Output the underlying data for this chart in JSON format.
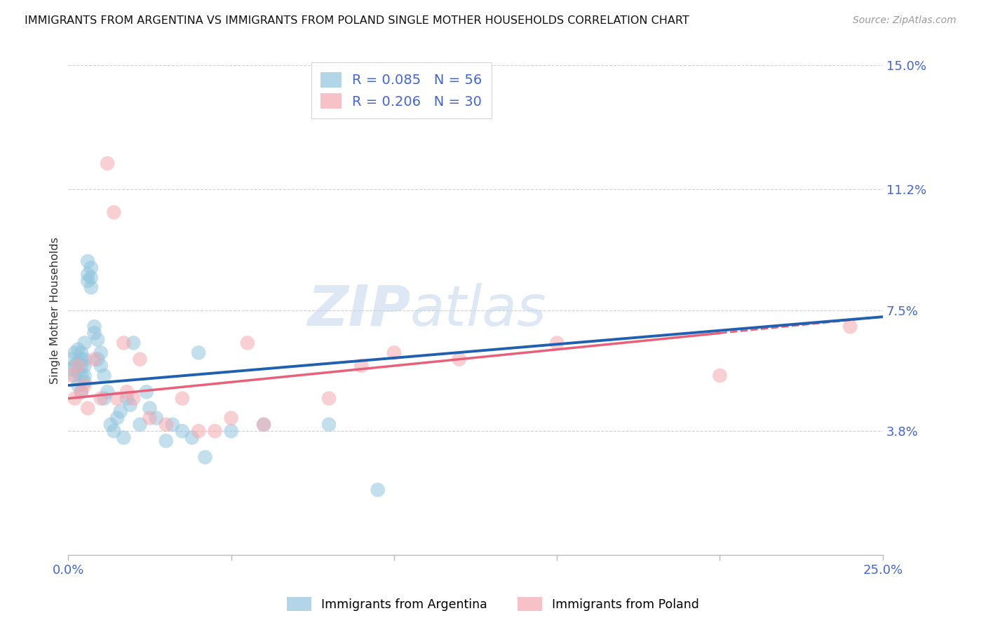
{
  "title": "IMMIGRANTS FROM ARGENTINA VS IMMIGRANTS FROM POLAND SINGLE MOTHER HOUSEHOLDS CORRELATION CHART",
  "source": "Source: ZipAtlas.com",
  "ylabel": "Single Mother Households",
  "xlim": [
    0.0,
    0.25
  ],
  "ylim": [
    0.0,
    0.15
  ],
  "ytick_labels_right": [
    "15.0%",
    "11.2%",
    "7.5%",
    "3.8%"
  ],
  "ytick_vals_right": [
    0.15,
    0.112,
    0.075,
    0.038
  ],
  "watermark_zip": "ZIP",
  "watermark_atlas": "atlas",
  "argentina_R": 0.085,
  "argentina_N": 56,
  "poland_R": 0.206,
  "poland_N": 30,
  "argentina_color": "#92c5de",
  "poland_color": "#f4a8b0",
  "argentina_line_color": "#2060b0",
  "poland_line_color": "#e8607a",
  "background_color": "#ffffff",
  "grid_color": "#d0d0d0",
  "argentina_x": [
    0.001,
    0.001,
    0.002,
    0.002,
    0.002,
    0.003,
    0.003,
    0.003,
    0.003,
    0.004,
    0.004,
    0.004,
    0.004,
    0.004,
    0.005,
    0.005,
    0.005,
    0.005,
    0.005,
    0.006,
    0.006,
    0.006,
    0.007,
    0.007,
    0.007,
    0.008,
    0.008,
    0.009,
    0.009,
    0.01,
    0.01,
    0.011,
    0.011,
    0.012,
    0.013,
    0.014,
    0.015,
    0.016,
    0.017,
    0.018,
    0.019,
    0.02,
    0.022,
    0.024,
    0.025,
    0.027,
    0.03,
    0.032,
    0.035,
    0.038,
    0.04,
    0.042,
    0.05,
    0.06,
    0.08,
    0.095
  ],
  "argentina_y": [
    0.06,
    0.057,
    0.062,
    0.058,
    0.055,
    0.063,
    0.059,
    0.056,
    0.052,
    0.058,
    0.062,
    0.055,
    0.06,
    0.05,
    0.065,
    0.06,
    0.058,
    0.055,
    0.053,
    0.09,
    0.086,
    0.084,
    0.088,
    0.085,
    0.082,
    0.07,
    0.068,
    0.066,
    0.06,
    0.062,
    0.058,
    0.055,
    0.048,
    0.05,
    0.04,
    0.038,
    0.042,
    0.044,
    0.036,
    0.048,
    0.046,
    0.065,
    0.04,
    0.05,
    0.045,
    0.042,
    0.035,
    0.04,
    0.038,
    0.036,
    0.062,
    0.03,
    0.038,
    0.04,
    0.04,
    0.02
  ],
  "poland_x": [
    0.001,
    0.002,
    0.003,
    0.004,
    0.005,
    0.006,
    0.008,
    0.01,
    0.012,
    0.014,
    0.015,
    0.017,
    0.018,
    0.02,
    0.022,
    0.025,
    0.03,
    0.035,
    0.04,
    0.045,
    0.05,
    0.055,
    0.06,
    0.08,
    0.09,
    0.1,
    0.12,
    0.15,
    0.2,
    0.24
  ],
  "poland_y": [
    0.055,
    0.048,
    0.058,
    0.05,
    0.052,
    0.045,
    0.06,
    0.048,
    0.12,
    0.105,
    0.048,
    0.065,
    0.05,
    0.048,
    0.06,
    0.042,
    0.04,
    0.048,
    0.038,
    0.038,
    0.042,
    0.065,
    0.04,
    0.048,
    0.058,
    0.062,
    0.06,
    0.065,
    0.055,
    0.07
  ]
}
